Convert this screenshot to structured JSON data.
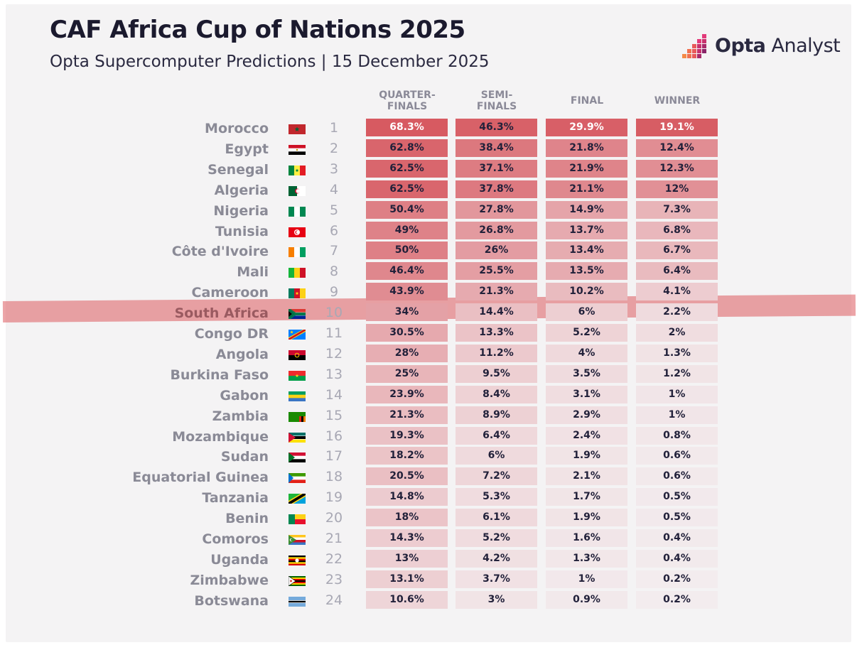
{
  "header": {
    "title": "CAF Africa Cup of Nations 2025",
    "subtitle": "Opta Supercomputer Predictions | 15 December 2025",
    "brand_bold": "Opta",
    "brand_light": " Analyst"
  },
  "colors": {
    "accent": "#d5565e",
    "text_dark": "#1b1a2e",
    "text_muted": "#8a8a96",
    "background": "#f4f3f4"
  },
  "chart_data": {
    "type": "table",
    "title": "CAF Africa Cup of Nations 2025",
    "subtitle": "Opta Supercomputer Predictions | 15 December 2025",
    "columns": [
      "QUARTER-FINALS",
      "SEMI-FINALS",
      "FINAL",
      "WINNER"
    ],
    "column_display": [
      [
        "QUARTER-",
        "FINALS"
      ],
      [
        "SEMI-",
        "FINALS"
      ],
      [
        "FINAL"
      ],
      [
        "WINNER"
      ]
    ],
    "highlight_team": "South Africa",
    "rows": [
      {
        "team": "Morocco",
        "rank": "1",
        "flag": "morocco",
        "values": [
          "68.3%",
          "46.3%",
          "29.9%",
          "19.1%"
        ],
        "numeric": [
          68.3,
          46.3,
          29.9,
          19.1
        ]
      },
      {
        "team": "Egypt",
        "rank": "2",
        "flag": "egypt",
        "values": [
          "62.8%",
          "38.4%",
          "21.8%",
          "12.4%"
        ],
        "numeric": [
          62.8,
          38.4,
          21.8,
          12.4
        ]
      },
      {
        "team": "Senegal",
        "rank": "3",
        "flag": "senegal",
        "values": [
          "62.5%",
          "37.1%",
          "21.9%",
          "12.3%"
        ],
        "numeric": [
          62.5,
          37.1,
          21.9,
          12.3
        ]
      },
      {
        "team": "Algeria",
        "rank": "4",
        "flag": "algeria",
        "values": [
          "62.5%",
          "37.8%",
          "21.1%",
          "12%"
        ],
        "numeric": [
          62.5,
          37.8,
          21.1,
          12
        ]
      },
      {
        "team": "Nigeria",
        "rank": "5",
        "flag": "nigeria",
        "values": [
          "50.4%",
          "27.8%",
          "14.9%",
          "7.3%"
        ],
        "numeric": [
          50.4,
          27.8,
          14.9,
          7.3
        ]
      },
      {
        "team": "Tunisia",
        "rank": "6",
        "flag": "tunisia",
        "values": [
          "49%",
          "26.8%",
          "13.7%",
          "6.8%"
        ],
        "numeric": [
          49,
          26.8,
          13.7,
          6.8
        ]
      },
      {
        "team": "Côte d'Ivoire",
        "rank": "7",
        "flag": "cote-divoire",
        "values": [
          "50%",
          "26%",
          "13.4%",
          "6.7%"
        ],
        "numeric": [
          50,
          26,
          13.4,
          6.7
        ]
      },
      {
        "team": "Mali",
        "rank": "8",
        "flag": "mali",
        "values": [
          "46.4%",
          "25.5%",
          "13.5%",
          "6.4%"
        ],
        "numeric": [
          46.4,
          25.5,
          13.5,
          6.4
        ]
      },
      {
        "team": "Cameroon",
        "rank": "9",
        "flag": "cameroon",
        "values": [
          "43.9%",
          "21.3%",
          "10.2%",
          "4.1%"
        ],
        "numeric": [
          43.9,
          21.3,
          10.2,
          4.1
        ]
      },
      {
        "team": "South Africa",
        "rank": "10",
        "flag": "south-africa",
        "values": [
          "34%",
          "14.4%",
          "6%",
          "2.2%"
        ],
        "numeric": [
          34,
          14.4,
          6,
          2.2
        ]
      },
      {
        "team": "Congo DR",
        "rank": "11",
        "flag": "congo-dr",
        "values": [
          "30.5%",
          "13.3%",
          "5.2%",
          "2%"
        ],
        "numeric": [
          30.5,
          13.3,
          5.2,
          2
        ]
      },
      {
        "team": "Angola",
        "rank": "12",
        "flag": "angola",
        "values": [
          "28%",
          "11.2%",
          "4%",
          "1.3%"
        ],
        "numeric": [
          28,
          11.2,
          4,
          1.3
        ]
      },
      {
        "team": "Burkina Faso",
        "rank": "13",
        "flag": "burkina-faso",
        "values": [
          "25%",
          "9.5%",
          "3.5%",
          "1.2%"
        ],
        "numeric": [
          25,
          9.5,
          3.5,
          1.2
        ]
      },
      {
        "team": "Gabon",
        "rank": "14",
        "flag": "gabon",
        "values": [
          "23.9%",
          "8.4%",
          "3.1%",
          "1%"
        ],
        "numeric": [
          23.9,
          8.4,
          3.1,
          1
        ]
      },
      {
        "team": "Zambia",
        "rank": "15",
        "flag": "zambia",
        "values": [
          "21.3%",
          "8.9%",
          "2.9%",
          "1%"
        ],
        "numeric": [
          21.3,
          8.9,
          2.9,
          1
        ]
      },
      {
        "team": "Mozambique",
        "rank": "16",
        "flag": "mozambique",
        "values": [
          "19.3%",
          "6.4%",
          "2.4%",
          "0.8%"
        ],
        "numeric": [
          19.3,
          6.4,
          2.4,
          0.8
        ]
      },
      {
        "team": "Sudan",
        "rank": "17",
        "flag": "sudan",
        "values": [
          "18.2%",
          "6%",
          "1.9%",
          "0.6%"
        ],
        "numeric": [
          18.2,
          6,
          1.9,
          0.6
        ]
      },
      {
        "team": "Equatorial Guinea",
        "rank": "18",
        "flag": "equatorial-guinea",
        "values": [
          "20.5%",
          "7.2%",
          "2.1%",
          "0.6%"
        ],
        "numeric": [
          20.5,
          7.2,
          2.1,
          0.6
        ]
      },
      {
        "team": "Tanzania",
        "rank": "19",
        "flag": "tanzania",
        "values": [
          "14.8%",
          "5.3%",
          "1.7%",
          "0.5%"
        ],
        "numeric": [
          14.8,
          5.3,
          1.7,
          0.5
        ]
      },
      {
        "team": "Benin",
        "rank": "20",
        "flag": "benin",
        "values": [
          "18%",
          "6.1%",
          "1.9%",
          "0.5%"
        ],
        "numeric": [
          18,
          6.1,
          1.9,
          0.5
        ]
      },
      {
        "team": "Comoros",
        "rank": "21",
        "flag": "comoros",
        "values": [
          "14.3%",
          "5.2%",
          "1.6%",
          "0.4%"
        ],
        "numeric": [
          14.3,
          5.2,
          1.6,
          0.4
        ]
      },
      {
        "team": "Uganda",
        "rank": "22",
        "flag": "uganda",
        "values": [
          "13%",
          "4.2%",
          "1.3%",
          "0.4%"
        ],
        "numeric": [
          13,
          4.2,
          1.3,
          0.4
        ]
      },
      {
        "team": "Zimbabwe",
        "rank": "23",
        "flag": "zimbabwe",
        "values": [
          "13.1%",
          "3.7%",
          "1%",
          "0.2%"
        ],
        "numeric": [
          13.1,
          3.7,
          1,
          0.2
        ]
      },
      {
        "team": "Botswana",
        "rank": "24",
        "flag": "botswana",
        "values": [
          "10.6%",
          "3%",
          "0.9%",
          "0.2%"
        ],
        "numeric": [
          10.6,
          3,
          0.9,
          0.2
        ]
      }
    ]
  }
}
